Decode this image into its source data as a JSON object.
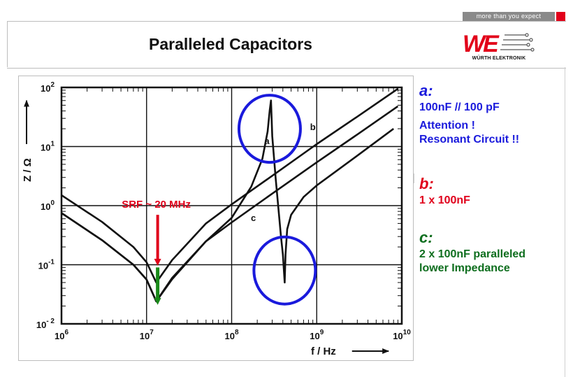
{
  "header": {
    "tagline": "more than you expect",
    "title": "Paralleled Capacitors",
    "logo_text": "WÜRTH ELEKTRONIK",
    "logo_mark": "WE"
  },
  "notes": [
    {
      "letter": "a:",
      "lines": [
        "100nF // 100 pF",
        "Attention !",
        "Resonant Circuit !!"
      ],
      "color": "#1a1adc"
    },
    {
      "letter": "b:",
      "lines": [
        "1 x 100nF"
      ],
      "color": "#e0001b"
    },
    {
      "letter": "c:",
      "lines": [
        "2 x 100nF paralleled",
        "lower Impedance"
      ],
      "color": "#0e6e1e"
    }
  ],
  "chart_data": {
    "type": "line",
    "x_scale": "log",
    "y_scale": "log",
    "xlim": [
      1000000,
      10000000000
    ],
    "ylim": [
      0.01,
      100
    ],
    "grid": true,
    "xlabel": "f /  Hz",
    "ylabel": "Z / Ω",
    "x_ticks": [
      {
        "value": 1000000,
        "base": "10",
        "exp": "6"
      },
      {
        "value": 10000000,
        "base": "10",
        "exp": "7"
      },
      {
        "value": 100000000,
        "base": "10",
        "exp": "8"
      },
      {
        "value": 1000000000,
        "base": "10",
        "exp": "9"
      },
      {
        "value": 10000000000,
        "base": "10",
        "exp": "10"
      }
    ],
    "y_ticks": [
      {
        "value": 100,
        "base": "10",
        "exp": "2"
      },
      {
        "value": 10,
        "base": "10",
        "exp": "1"
      },
      {
        "value": 1,
        "base": "10",
        "exp": "0"
      },
      {
        "value": 0.1,
        "base": "10",
        "exp": "-1"
      },
      {
        "value": 0.01,
        "base": "10",
        "exp": "- 2"
      }
    ],
    "series": [
      {
        "name": "a",
        "label_at": [
          260000000,
          11
        ],
        "x": [
          1000000,
          3000000,
          7000000,
          10000000,
          13000000,
          20000000,
          50000000,
          100000000,
          170000000,
          230000000,
          265000000,
          280000000,
          290000000,
          300000000,
          330000000,
          380000000,
          400000000,
          420000000,
          430000000,
          450000000,
          500000000,
          700000000,
          1000000000,
          3000000000,
          8000000000
        ],
        "y": [
          0.75,
          0.26,
          0.1,
          0.056,
          0.024,
          0.057,
          0.25,
          0.62,
          2.1,
          6.2,
          18,
          40,
          60,
          15,
          2.8,
          0.3,
          0.15,
          0.05,
          0.15,
          0.4,
          0.7,
          1.4,
          2.2,
          7,
          20
        ]
      },
      {
        "name": "b",
        "label_at": [
          900000000,
          19
        ],
        "x": [
          1000000,
          3000000,
          7000000,
          10000000,
          13000000,
          20000000,
          50000000,
          100000000,
          300000000,
          1000000000,
          3000000000,
          9000000000
        ],
        "y": [
          1.5,
          0.53,
          0.2,
          0.11,
          0.05,
          0.12,
          0.5,
          1.05,
          3.2,
          11,
          32,
          95
        ]
      },
      {
        "name": "c",
        "label_at": [
          180000000,
          0.55
        ],
        "x": [
          1000000,
          3000000,
          7000000,
          10000000,
          13000000,
          20000000,
          50000000,
          100000000,
          300000000,
          1000000000,
          3000000000,
          9000000000
        ],
        "y": [
          0.75,
          0.26,
          0.1,
          0.056,
          0.024,
          0.06,
          0.25,
          0.52,
          1.6,
          5.4,
          16,
          48
        ]
      }
    ],
    "annotations": [
      {
        "text": "SRF ~ 20 MHz",
        "color": "#e0001b",
        "arrow_color": "#e0001b",
        "x": 13000000,
        "y_from": 0.7,
        "y_to": 0.11
      },
      {
        "text": "",
        "color": "#1a8a1a",
        "arrow_color": "#1a8a1a",
        "x": 13000000,
        "y_from": 0.09,
        "y_to": 0.024
      },
      {
        "text": "",
        "shape": "ellipse",
        "color": "#1a1adc",
        "cx": 280000000,
        "cy": 20
      },
      {
        "text": "",
        "shape": "ellipse",
        "color": "#1a1adc",
        "cx": 420000000,
        "cy": 0.08
      }
    ]
  }
}
